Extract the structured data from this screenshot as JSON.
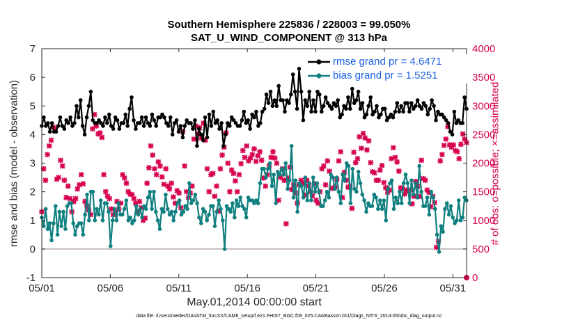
{
  "title_line1": "Southern Hemisphere 225836 / 228003 = 99.050%",
  "title_line2": "SAT_U_WIND_COMPONENT @ 313 hPa",
  "xlabel": "May.01,2014 00:00:00 start",
  "ylabel_left": "rmse and bias (model - observation)",
  "ylabel_right": "# of obs: o=possible; ×=assimilated",
  "footnote": "data file: /Users/raeder/DAI/ATM_forcXX/CAM6_setup/f.e21.FHIST_BGC.f09_025.CAM6assim.011/Diags_NTrS_2014-05/obs_diag_output.nc",
  "legend": [
    {
      "label": "rmse grand pr = 4.6471",
      "color": "#000000"
    },
    {
      "label": "bias grand pr = 1.5251",
      "color": "#0f7f7f"
    }
  ],
  "colors": {
    "rmse": "#000000",
    "bias": "#0f7f7f",
    "obs": "#d6004f",
    "zero_line": "#b8a8b0"
  },
  "chart_data": {
    "type": "line",
    "x_tick_labels": [
      "05/01",
      "05/06",
      "05/11",
      "05/16",
      "05/21",
      "05/26",
      "05/31"
    ],
    "x_tick_days": [
      1,
      6,
      11,
      16,
      21,
      26,
      31
    ],
    "xlim": [
      1,
      32
    ],
    "y_left_lim": [
      -1,
      7
    ],
    "y_left_ticks": [
      "-1",
      "0",
      "1",
      "2",
      "3",
      "4",
      "5",
      "6",
      "7"
    ],
    "y_right_lim": [
      0,
      4000
    ],
    "y_right_ticks": [
      "0",
      "500",
      "1000",
      "1500",
      "2000",
      "2500",
      "3000",
      "3500",
      "4000"
    ],
    "zero_line": 0,
    "grid": false,
    "legend_position": "top-right",
    "series": [
      {
        "name": "rmse grand pr = 4.6471",
        "axis": "left",
        "marker": "filled-dot",
        "values": [
          4.3,
          4.6,
          4.3,
          4.4,
          4.1,
          4.4,
          4.1,
          4.1,
          4.3,
          4.6,
          4.3,
          4.2,
          4.5,
          4.4,
          4.6,
          4.3,
          4.4,
          5.0,
          4.6,
          5.2,
          4.3,
          4.0,
          4.6,
          5.0,
          5.5,
          4.5,
          4.4,
          4.4,
          4.5,
          4.4,
          4.3,
          4.6,
          4.4,
          4.7,
          4.3,
          4.2,
          4.6,
          4.5,
          4.2,
          4.4,
          4.4,
          4.7,
          4.3,
          4.9,
          5.3,
          4.5,
          4.2,
          4.4,
          4.4,
          4.6,
          4.3,
          4.6,
          4.4,
          4.3,
          4.7,
          4.5,
          4.3,
          4.6,
          4.6,
          4.7,
          4.6,
          4.4,
          4.3,
          4.6,
          4.0,
          4.4,
          4.5,
          4.1,
          4.3,
          3.9,
          4.3,
          4.5,
          4.4,
          4.4,
          4.2,
          4.5,
          3.6,
          4.2,
          4.0,
          3.8,
          4.6,
          3.9,
          4.7,
          4.3,
          4.8,
          4.4,
          4.5,
          4.2,
          4.4,
          3.6,
          4.0,
          4.4,
          4.3,
          4.6,
          4.5,
          4.4,
          4.3,
          4.3,
          4.5,
          4.8,
          4.4,
          4.5,
          4.2,
          4.7,
          4.6,
          4.8,
          4.3,
          4.4,
          4.8,
          4.9,
          5.4,
          5.1,
          5.5,
          5.0,
          5.2,
          5.0,
          5.7,
          5.2,
          5.2,
          4.8,
          5.2,
          5.1,
          5.4,
          6.1,
          5.5,
          4.9,
          6.3,
          5.5,
          4.5,
          5.2,
          5.0,
          5.5,
          4.8,
          5.2,
          4.8,
          5.5,
          5.4,
          4.8,
          5.0,
          5.3,
          5.1,
          5.0,
          4.9,
          5.1,
          5.0,
          5.2,
          4.6,
          4.7,
          5.0,
          4.9,
          5.3,
          4.9,
          5.6,
          5.1,
          5.2,
          5.5,
          4.9,
          5.1,
          4.6,
          4.7,
          5.0,
          5.3,
          4.7,
          4.8,
          5.0,
          4.6,
          4.7,
          4.9,
          4.9,
          4.5,
          4.6,
          4.7,
          4.6,
          4.8,
          5.1,
          4.8,
          5.0,
          4.8,
          5.1,
          5.1,
          4.8,
          5.1,
          4.9,
          5.0,
          5.2,
          5.0,
          4.9,
          5.1,
          5.0,
          4.7,
          4.9,
          5.2,
          5.0,
          4.5,
          4.8,
          4.7,
          4.7,
          4.6,
          4.5,
          4.4,
          4.1,
          4.0,
          4.8,
          4.4,
          4.5,
          4.4,
          4.4,
          5.3,
          4.9
        ]
      },
      {
        "name": "bias grand pr = 1.5251",
        "axis": "left",
        "marker": "filled-dot",
        "values": [
          1.1,
          0.8,
          1.4,
          0.7,
          0.9,
          0.3,
          0.9,
          1.5,
          0.5,
          1.3,
          0.8,
          1.3,
          0.7,
          1.5,
          1.6,
          1.6,
          0.9,
          0.5,
          0.8,
          0.9,
          0.9,
          0.5,
          1.2,
          1.9,
          1.0,
          2.0,
          2.0,
          1.0,
          1.4,
          1.2,
          1.7,
          1.0,
          1.6,
          1.6,
          1.3,
          0.1,
          1.0,
          1.4,
          1.0,
          1.6,
          1.2,
          1.2,
          1.4,
          1.7,
          1.0,
          1.1,
          0.9,
          1.0,
          1.5,
          1.2,
          1.4,
          1.1,
          1.5,
          1.4,
          1.8,
          2.0,
          1.4,
          2.0,
          1.3,
          1.0,
          0.7,
          1.4,
          1.3,
          1.9,
          1.4,
          1.2,
          1.3,
          1.0,
          1.3,
          1.6,
          1.7,
          1.2,
          1.3,
          1.5,
          1.4,
          2.3,
          1.6,
          1.7,
          1.9,
          1.6,
          1.1,
          0.9,
          1.4,
          1.3,
          1.0,
          1.2,
          1.5,
          1.5,
          0.8,
          1.3,
          1.7,
          1.4,
          1.0,
          0.0,
          1.5,
          1.4,
          1.3,
          1.6,
          1.1,
          1.7,
          1.5,
          1.8,
          1.5,
          1.4,
          1.1,
          1.8,
          1.7,
          1.7,
          1.6,
          1.7,
          1.6,
          2.3,
          2.8,
          2.8,
          2.5,
          2.8,
          3.0,
          2.2,
          2.6,
          1.6,
          2.7,
          2.6,
          2.8,
          2.6,
          3.0,
          2.1,
          2.4,
          3.6,
          1.8,
          2.4,
          1.3,
          2.3,
          2.2,
          1.8,
          2.5,
          1.7,
          2.3,
          1.7,
          2.5,
          2.0,
          2.3,
          2.0,
          1.5,
          1.5,
          1.7,
          2.0,
          1.8,
          2.6,
          2.5,
          2.1,
          2.5,
          2.0,
          1.6,
          2.6,
          2.4,
          3.0,
          2.9,
          1.6,
          2.8,
          2.1,
          2.0,
          2.7,
          2.3,
          1.9,
          1.7,
          1.3,
          1.6,
          1.5,
          1.5,
          1.9,
          1.8,
          1.4,
          1.7,
          1.4,
          1.7,
          1.0,
          2.1,
          2.3,
          2.4,
          1.4,
          1.8,
          1.6,
          2.0,
          1.6,
          2.3,
          2.6,
          2.3,
          1.6,
          2.4,
          1.9,
          2.3,
          1.8,
          2.9,
          2.0,
          1.5,
          1.5,
          1.8,
          1.2,
          2.0,
          1.8,
          1.4,
          0.5,
          -0.1,
          0.8,
          0.6,
          1.4,
          1.6,
          1.2,
          1.5,
          1.1,
          0.9,
          1.0,
          1.7,
          1.0,
          1.1,
          1.8,
          1.7
        ]
      },
      {
        "name": "",
        "axis": "right",
        "marker": "x",
        "values": [
          1150,
          1900,
          1700,
          2150,
          2300,
          2400,
          2630,
          2600,
          1720,
          1750,
          2050,
          1950,
          1700,
          1400,
          1600,
          1380,
          1150,
          1330,
          1380,
          1550,
          1620,
          1800,
          1640,
          1330,
          1250,
          1180,
          1100,
          2600,
          2850,
          2650,
          2510,
          2530,
          2450,
          1800,
          1500,
          1420,
          1380,
          1200,
          1100,
          1140,
          1330,
          1200,
          1300,
          1800,
          1740,
          1650,
          1500,
          1460,
          1450,
          1380,
          1300,
          1150,
          1330,
          1220,
          1000,
          1040,
          1650,
          1920,
          2300,
          2140,
          1900,
          1800,
          2020,
          1950,
          1760,
          1630,
          1900,
          1600,
          1550,
          1650,
          1410,
          1300,
          1520,
          1480,
          1220,
          2550,
          1950,
          1500,
          1400,
          1480,
          1600,
          2420,
          2650,
          2510,
          2620,
          2440,
          2700,
          2400,
          1900,
          1500,
          1800,
          1820,
          1420,
          1600,
          1160,
          1900,
          2140,
          2280,
          2530,
          2000,
          1500,
          1880,
          1820,
          1690,
          1500,
          1800,
          1990,
          2220,
          2100,
          2300,
          2040,
          2090,
          2150,
          2250,
          2030,
          2130,
          2200,
          2050,
          1740,
          1600,
          1800,
          1950,
          2100,
          2200,
          2090,
          2000,
          1350,
          1750,
          1900,
          1700,
          940,
          1740,
          1930,
          1540,
          1620,
          1480,
          1300,
          1620,
          1700,
          1650,
          1440,
          1700,
          1600,
          1500,
          1430,
          1640,
          1350,
          1300,
          1500,
          1900,
          1950,
          1620,
          2040,
          1860,
          1560,
          1560,
          1580,
          1720,
          2040,
          2200,
          1400,
          1840,
          1700,
          1580,
          1600,
          1210,
          2190,
          2010,
          2080,
          2460,
          2260,
          2520,
          2440,
          2230,
          2390,
          2010,
          1850,
          1830,
          1700,
          1700,
          1880,
          1960,
          1660,
          1570,
          1490,
          1530,
          2080,
          2270,
          2100,
          2020,
          1860,
          1570,
          1550,
          1460,
          1530,
          1510,
          1530,
          1290,
          1420,
          1680,
          1600,
          1420,
          2050,
          1730,
          1700,
          1530,
          1490,
          1240,
          1420,
          1310,
          530,
          630,
          2040,
          2150,
          2310,
          2420,
          2640,
          2320,
          2280,
          2320,
          2220,
          2200,
          2080,
          2330,
          2510,
          2420,
          2360
        ]
      }
    ]
  }
}
